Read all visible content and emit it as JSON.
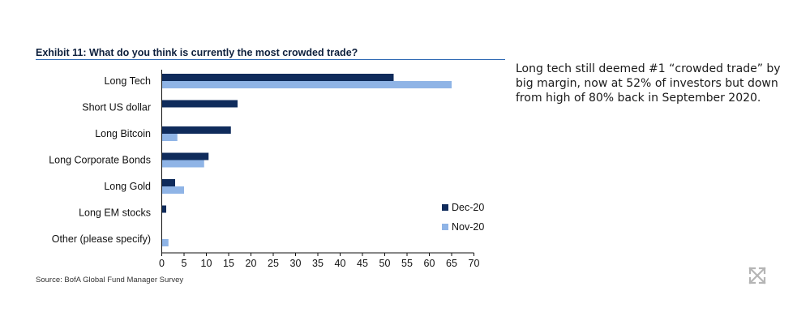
{
  "exhibit": {
    "title": "Exhibit 11: What do you think is currently the most crowded trade?",
    "source": "Source: BofA Global Fund Manager Survey"
  },
  "commentary": "Long tech still deemed #1 “crowded trade” by big margin, now at 52% of investors but down from high of 80% back in September 2020.",
  "colors": {
    "dec20": "#0f2b5b",
    "nov20": "#8fb4e6",
    "rule": "#2f69b4",
    "expand_icon": "#b5b5b5"
  },
  "icons": {
    "expand": "expand-arrows-icon"
  },
  "chart_data": {
    "type": "bar",
    "orientation": "horizontal",
    "title": "What do you think is currently the most crowded trade?",
    "categories": [
      "Long Tech",
      "Short US dollar",
      "Long Bitcoin",
      "Long Corporate Bonds",
      "Long Gold",
      "Long EM stocks",
      "Other (please specify)"
    ],
    "series": [
      {
        "name": "Dec-20",
        "values": [
          52,
          17,
          15.5,
          10.5,
          3,
          1,
          0
        ]
      },
      {
        "name": "Nov-20",
        "values": [
          65,
          0,
          3.5,
          9.5,
          5,
          0,
          1.5
        ]
      }
    ],
    "xlim": [
      0,
      70
    ],
    "xticks": [
      0,
      5,
      10,
      15,
      20,
      25,
      30,
      35,
      40,
      45,
      50,
      55,
      60,
      65,
      70
    ],
    "grid": false,
    "legend_position": "bottom-right"
  }
}
